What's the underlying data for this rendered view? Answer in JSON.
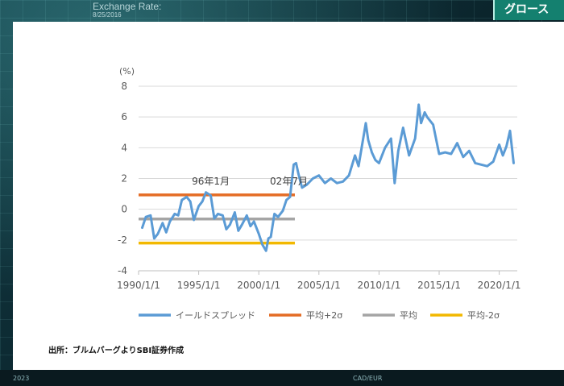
{
  "background": {
    "label_title": "Exchange Rate:",
    "label_date": "8/25/2016",
    "badge_text": "グロース",
    "bottom_items": [
      "2023",
      "CAD/EUR"
    ]
  },
  "source_note": "出所：ブルムバーグよりSBI証券作成",
  "colors": {
    "spread": "#5b9bd5",
    "plus2": "#e46c25",
    "mean": "#a5a5a5",
    "minus2": "#f2b800"
  },
  "chart_data": {
    "type": "line",
    "y_unit_label": "(%)",
    "ylim": [
      -4,
      8
    ],
    "yticks": [
      -4,
      -2,
      0,
      2,
      4,
      6,
      8
    ],
    "x_tick_labels": [
      "1990/1/1",
      "1995/1/1",
      "2000/1/1",
      "2005/1/1",
      "2010/1/1",
      "2015/1/1",
      "2020/1/1"
    ],
    "x_tick_years": [
      1990,
      1995,
      2000,
      2005,
      2010,
      2015,
      2020
    ],
    "xlim": [
      1990,
      2021.5
    ],
    "grid": true,
    "legend_position": "bottom",
    "series": [
      {
        "name": "イールドスプレッド",
        "x": [
          1990.3,
          1990.6,
          1991.0,
          1991.3,
          1991.6,
          1992.0,
          1992.3,
          1992.6,
          1993.0,
          1993.3,
          1993.6,
          1994.0,
          1994.3,
          1994.6,
          1995.0,
          1995.3,
          1995.6,
          1996.0,
          1996.3,
          1996.6,
          1997.0,
          1997.3,
          1997.6,
          1998.0,
          1998.3,
          1998.6,
          1999.0,
          1999.3,
          1999.6,
          2000.0,
          2000.3,
          2000.6,
          2000.8,
          2001.0,
          2001.3,
          2001.6,
          2002.0,
          2002.3,
          2002.6,
          2002.9,
          2003.1,
          2003.3,
          2003.6,
          2004.0,
          2004.5,
          2005.0,
          2005.5,
          2006.0,
          2006.5,
          2007.0,
          2007.5,
          2008.0,
          2008.3,
          2008.6,
          2008.9,
          2009.1,
          2009.4,
          2009.7,
          2010.0,
          2010.5,
          2011.0,
          2011.3,
          2011.6,
          2012.0,
          2012.5,
          2013.0,
          2013.3,
          2013.5,
          2013.8,
          2014.0,
          2014.5,
          2015.0,
          2015.5,
          2016.0,
          2016.5,
          2017.0,
          2017.5,
          2018.0,
          2018.5,
          2019.0,
          2019.5,
          2020.0,
          2020.3,
          2020.6,
          2020.9,
          2021.2
        ],
        "values": [
          -1.2,
          -0.5,
          -0.4,
          -1.9,
          -1.6,
          -0.9,
          -1.5,
          -0.8,
          -0.3,
          -0.4,
          0.6,
          0.8,
          0.5,
          -0.7,
          0.2,
          0.5,
          1.1,
          0.9,
          -0.6,
          -0.3,
          -0.4,
          -1.3,
          -1.0,
          -0.2,
          -1.4,
          -1.0,
          -0.4,
          -1.1,
          -0.8,
          -1.6,
          -2.3,
          -2.7,
          -1.9,
          -1.8,
          -0.3,
          -0.5,
          -0.1,
          0.6,
          0.8,
          2.9,
          3.0,
          2.3,
          1.4,
          1.6,
          2.0,
          2.2,
          1.7,
          2.0,
          1.7,
          1.8,
          2.2,
          3.5,
          2.8,
          4.2,
          5.6,
          4.5,
          3.7,
          3.2,
          3.0,
          4.0,
          4.6,
          1.7,
          3.8,
          5.3,
          3.5,
          4.6,
          6.8,
          5.6,
          6.3,
          6.0,
          5.5,
          3.6,
          3.7,
          3.6,
          4.3,
          3.4,
          3.8,
          3.0,
          2.9,
          2.8,
          3.1,
          4.2,
          3.5,
          4.1,
          5.1,
          3.0
        ]
      },
      {
        "name": "平均+2σ",
        "x": [
          1990,
          2003
        ],
        "values": [
          0.93,
          0.93
        ]
      },
      {
        "name": "平均",
        "x": [
          1990,
          2003
        ],
        "values": [
          -0.63,
          -0.63
        ]
      },
      {
        "name": "平均-2σ",
        "x": [
          1990,
          2003
        ],
        "values": [
          -2.2,
          -2.2
        ]
      }
    ],
    "annotations": [
      {
        "text": "96年1月",
        "x": 1996.0,
        "y": 1.6
      },
      {
        "text": "02年7月",
        "x": 2002.5,
        "y": 1.6
      }
    ]
  }
}
